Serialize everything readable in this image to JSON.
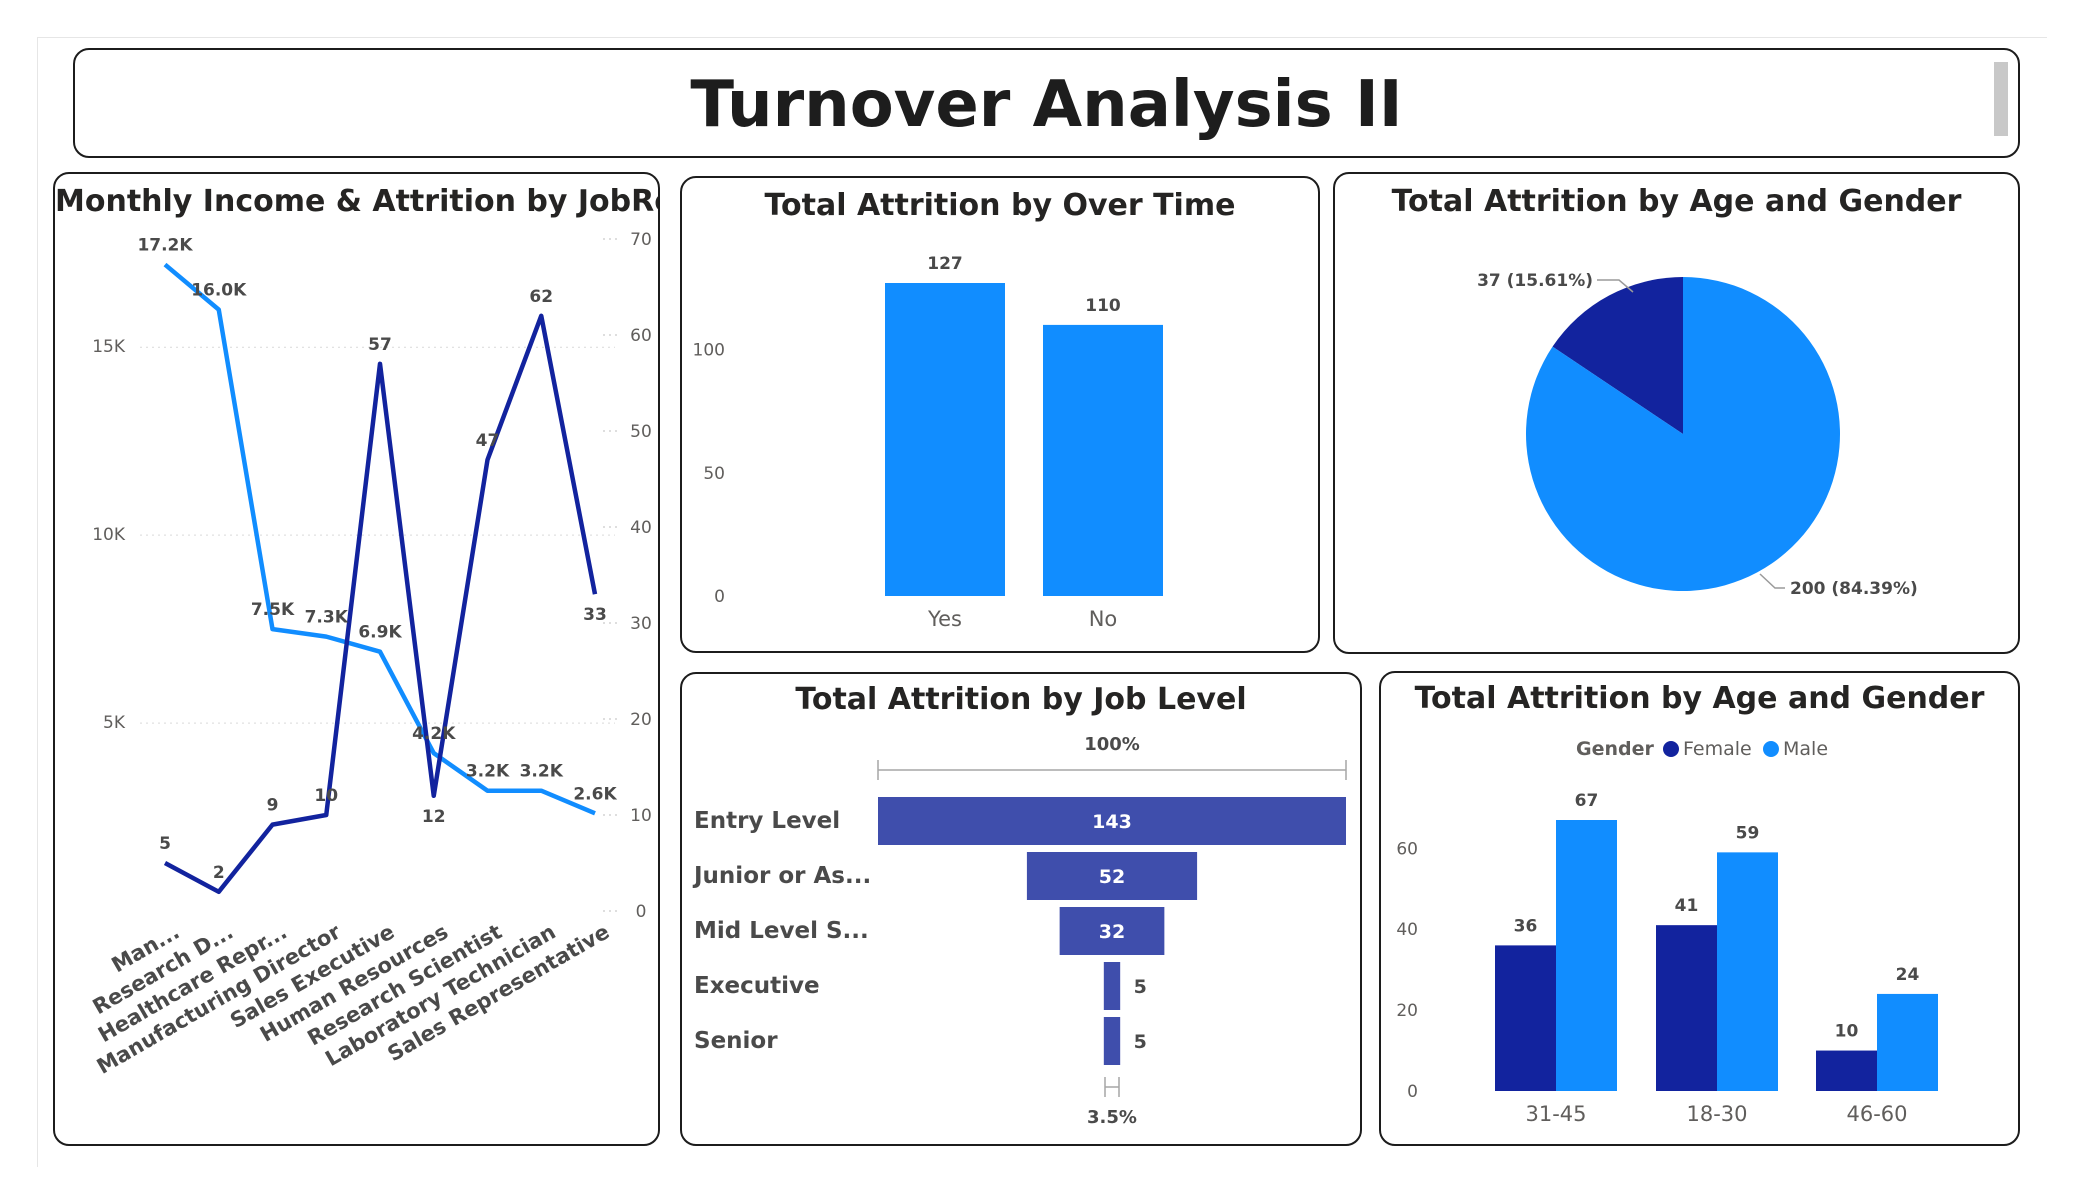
{
  "header": {
    "title": "Turnover Analysis II"
  },
  "panels": {
    "jobrole": {
      "title": "Monthly Income & Attrition by JobRole"
    },
    "overtime": {
      "title": "Total Attrition by Over Time"
    },
    "age_gender_pie": {
      "title": "Total Attrition by Age and Gender"
    },
    "job_level": {
      "title": "Total Attrition by Job Level"
    },
    "age_gender_bar": {
      "title": "Total Attrition by Age and Gender"
    }
  },
  "colors": {
    "dark_blue": "#12239e",
    "light_blue": "#118dff",
    "funnel": "#3f4eac",
    "axis_text": "#605e5c",
    "label_text": "#252423"
  },
  "chart_data": [
    {
      "id": "jobrole",
      "type": "line",
      "categories": [
        "Man...",
        "Research D...",
        "Healthcare Repr...",
        "Manufacturing Director",
        "Sales Executive",
        "Human Resources",
        "Research Scientist",
        "Laboratory Technician",
        "Sales Representative"
      ],
      "series": [
        {
          "axis": "left",
          "color": "#118dff",
          "values": [
            17.2,
            16.0,
            7.5,
            7.3,
            6.9,
            4.2,
            3.2,
            3.2,
            2.6
          ],
          "labels": [
            "17.2K",
            "16.0K",
            "7.5K",
            "7.3K",
            "6.9K",
            "4.2K",
            "3.2K",
            "3.2K",
            "2.6K"
          ]
        },
        {
          "axis": "right",
          "color": "#12239e",
          "values": [
            5,
            2,
            9,
            10,
            57,
            12,
            47,
            62,
            33
          ],
          "labels": [
            "5",
            "2",
            "9",
            "10",
            "57",
            "12",
            "47",
            "62",
            "33"
          ]
        }
      ],
      "y_left": {
        "ticks": [
          "5K",
          "10K",
          "15K"
        ],
        "tick_values": [
          5,
          10,
          15
        ],
        "range": [
          0,
          17.8
        ]
      },
      "y_right": {
        "ticks": [
          "0",
          "10",
          "20",
          "30",
          "40",
          "50",
          "60",
          "70"
        ],
        "tick_values": [
          0,
          10,
          20,
          30,
          40,
          50,
          60,
          70
        ],
        "range": [
          0,
          70
        ]
      },
      "grid": true
    },
    {
      "id": "overtime",
      "type": "bar",
      "categories": [
        "Yes",
        "No"
      ],
      "values": [
        127,
        110
      ],
      "labels": [
        "127",
        "110"
      ],
      "y_ticks": [
        "0",
        "50",
        "100"
      ],
      "y_tick_values": [
        0,
        50,
        100
      ],
      "ylim": [
        0,
        127
      ]
    },
    {
      "id": "age_gender_pie",
      "type": "pie",
      "slices": [
        {
          "value": 37,
          "label": "37 (15.61%)",
          "color": "#12239e"
        },
        {
          "value": 200,
          "label": "200 (84.39%)",
          "color": "#118dff"
        }
      ]
    },
    {
      "id": "job_level",
      "type": "bar",
      "categories": [
        "Entry Level",
        "Junior or As...",
        "Mid Level S...",
        "Executive",
        "Senior"
      ],
      "values": [
        143,
        52,
        32,
        5,
        5
      ],
      "labels": [
        "143",
        "52",
        "32",
        "5",
        "5"
      ],
      "top_label": "100%",
      "bottom_label": "3.5%"
    },
    {
      "id": "age_gender_bar",
      "type": "bar",
      "categories": [
        "31-45",
        "18-30",
        "46-60"
      ],
      "legend_title": "Gender",
      "series": [
        {
          "name": "Female",
          "color": "#12239e",
          "values": [
            36,
            41,
            10
          ]
        },
        {
          "name": "Male",
          "color": "#118dff",
          "values": [
            67,
            59,
            24
          ]
        }
      ],
      "y_ticks": [
        "0",
        "20",
        "40",
        "60"
      ],
      "y_tick_values": [
        0,
        20,
        40,
        60
      ],
      "ylim": [
        0,
        67
      ]
    }
  ]
}
